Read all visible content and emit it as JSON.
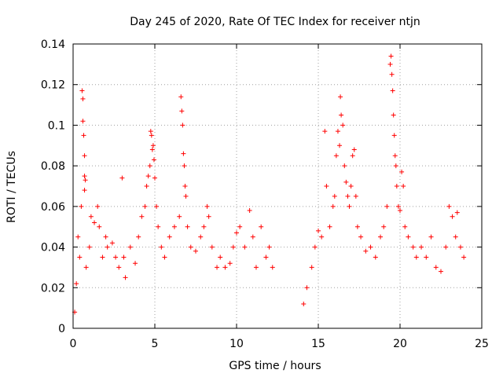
{
  "chart_data": {
    "type": "scatter",
    "title": "Day 245 of 2020, Rate Of TEC Index for receiver ntjn",
    "xlabel": "GPS time / hours",
    "ylabel": "ROTI / TECUs",
    "xlim": [
      0,
      25
    ],
    "ylim": [
      0,
      0.14
    ],
    "xticks": [
      0,
      5,
      10,
      15,
      20,
      25
    ],
    "xtick_labels": [
      "0",
      "5",
      "10",
      "15",
      "20",
      "25"
    ],
    "yticks": [
      0,
      0.02,
      0.04,
      0.06,
      0.08,
      0.1,
      0.12,
      0.14
    ],
    "ytick_labels": [
      "0",
      "0.02",
      "0.04",
      "0.06",
      "0.08",
      "0.1",
      "0.12",
      "0.14"
    ],
    "grid": true,
    "marker": "plus",
    "color": "#ff0000",
    "data_gap_hours": [
      12.3,
      14.0
    ],
    "series": [
      {
        "name": "ROTI",
        "points": [
          [
            0.1,
            0.008
          ],
          [
            0.2,
            0.022
          ],
          [
            0.3,
            0.045
          ],
          [
            0.4,
            0.035
          ],
          [
            0.5,
            0.06
          ],
          [
            0.55,
            0.117
          ],
          [
            0.6,
            0.113
          ],
          [
            0.6,
            0.102
          ],
          [
            0.65,
            0.095
          ],
          [
            0.7,
            0.085
          ],
          [
            0.7,
            0.075
          ],
          [
            0.7,
            0.068
          ],
          [
            0.75,
            0.073
          ],
          [
            0.8,
            0.03
          ],
          [
            1.0,
            0.04
          ],
          [
            1.1,
            0.055
          ],
          [
            1.3,
            0.052
          ],
          [
            1.5,
            0.06
          ],
          [
            1.6,
            0.05
          ],
          [
            1.8,
            0.035
          ],
          [
            2.0,
            0.045
          ],
          [
            2.1,
            0.04
          ],
          [
            2.4,
            0.042
          ],
          [
            2.6,
            0.035
          ],
          [
            2.8,
            0.03
          ],
          [
            3.0,
            0.074
          ],
          [
            3.1,
            0.035
          ],
          [
            3.2,
            0.025
          ],
          [
            3.5,
            0.04
          ],
          [
            3.8,
            0.032
          ],
          [
            4.0,
            0.045
          ],
          [
            4.2,
            0.055
          ],
          [
            4.4,
            0.06
          ],
          [
            4.5,
            0.07
          ],
          [
            4.6,
            0.075
          ],
          [
            4.7,
            0.08
          ],
          [
            4.75,
            0.097
          ],
          [
            4.8,
            0.095
          ],
          [
            4.85,
            0.088
          ],
          [
            4.9,
            0.09
          ],
          [
            4.95,
            0.083
          ],
          [
            5.0,
            0.074
          ],
          [
            5.1,
            0.06
          ],
          [
            5.2,
            0.05
          ],
          [
            5.4,
            0.04
          ],
          [
            5.6,
            0.035
          ],
          [
            5.9,
            0.045
          ],
          [
            6.2,
            0.05
          ],
          [
            6.5,
            0.055
          ],
          [
            6.6,
            0.114
          ],
          [
            6.65,
            0.107
          ],
          [
            6.7,
            0.1
          ],
          [
            6.75,
            0.086
          ],
          [
            6.8,
            0.08
          ],
          [
            6.85,
            0.07
          ],
          [
            6.9,
            0.065
          ],
          [
            7.0,
            0.05
          ],
          [
            7.2,
            0.04
          ],
          [
            7.5,
            0.038
          ],
          [
            7.8,
            0.045
          ],
          [
            8.0,
            0.05
          ],
          [
            8.2,
            0.06
          ],
          [
            8.3,
            0.055
          ],
          [
            8.5,
            0.04
          ],
          [
            8.8,
            0.03
          ],
          [
            9.0,
            0.035
          ],
          [
            9.3,
            0.03
          ],
          [
            9.6,
            0.032
          ],
          [
            9.8,
            0.04
          ],
          [
            10.0,
            0.047
          ],
          [
            10.2,
            0.05
          ],
          [
            10.5,
            0.04
          ],
          [
            10.8,
            0.058
          ],
          [
            11.0,
            0.045
          ],
          [
            11.2,
            0.03
          ],
          [
            11.5,
            0.05
          ],
          [
            11.8,
            0.035
          ],
          [
            12.0,
            0.04
          ],
          [
            12.2,
            0.03
          ],
          [
            14.1,
            0.012
          ],
          [
            14.3,
            0.02
          ],
          [
            14.6,
            0.03
          ],
          [
            14.8,
            0.04
          ],
          [
            15.0,
            0.048
          ],
          [
            15.2,
            0.045
          ],
          [
            15.4,
            0.097
          ],
          [
            15.5,
            0.07
          ],
          [
            15.7,
            0.05
          ],
          [
            15.9,
            0.06
          ],
          [
            16.0,
            0.065
          ],
          [
            16.1,
            0.085
          ],
          [
            16.2,
            0.097
          ],
          [
            16.3,
            0.09
          ],
          [
            16.35,
            0.114
          ],
          [
            16.4,
            0.105
          ],
          [
            16.5,
            0.1
          ],
          [
            16.6,
            0.08
          ],
          [
            16.7,
            0.072
          ],
          [
            16.8,
            0.065
          ],
          [
            16.9,
            0.06
          ],
          [
            17.0,
            0.07
          ],
          [
            17.1,
            0.085
          ],
          [
            17.2,
            0.088
          ],
          [
            17.3,
            0.065
          ],
          [
            17.4,
            0.05
          ],
          [
            17.6,
            0.045
          ],
          [
            17.9,
            0.038
          ],
          [
            18.2,
            0.04
          ],
          [
            18.5,
            0.035
          ],
          [
            18.8,
            0.045
          ],
          [
            19.0,
            0.05
          ],
          [
            19.2,
            0.06
          ],
          [
            19.4,
            0.13
          ],
          [
            19.45,
            0.134
          ],
          [
            19.5,
            0.125
          ],
          [
            19.55,
            0.117
          ],
          [
            19.6,
            0.105
          ],
          [
            19.65,
            0.095
          ],
          [
            19.7,
            0.085
          ],
          [
            19.75,
            0.08
          ],
          [
            19.8,
            0.07
          ],
          [
            19.9,
            0.06
          ],
          [
            20.0,
            0.058
          ],
          [
            20.1,
            0.077
          ],
          [
            20.2,
            0.07
          ],
          [
            20.3,
            0.05
          ],
          [
            20.5,
            0.045
          ],
          [
            20.8,
            0.04
          ],
          [
            21.0,
            0.035
          ],
          [
            21.3,
            0.04
          ],
          [
            21.6,
            0.035
          ],
          [
            21.9,
            0.045
          ],
          [
            22.2,
            0.03
          ],
          [
            22.5,
            0.028
          ],
          [
            22.8,
            0.04
          ],
          [
            23.0,
            0.06
          ],
          [
            23.2,
            0.055
          ],
          [
            23.4,
            0.045
          ],
          [
            23.5,
            0.057
          ],
          [
            23.7,
            0.04
          ],
          [
            23.9,
            0.035
          ]
        ]
      }
    ]
  }
}
